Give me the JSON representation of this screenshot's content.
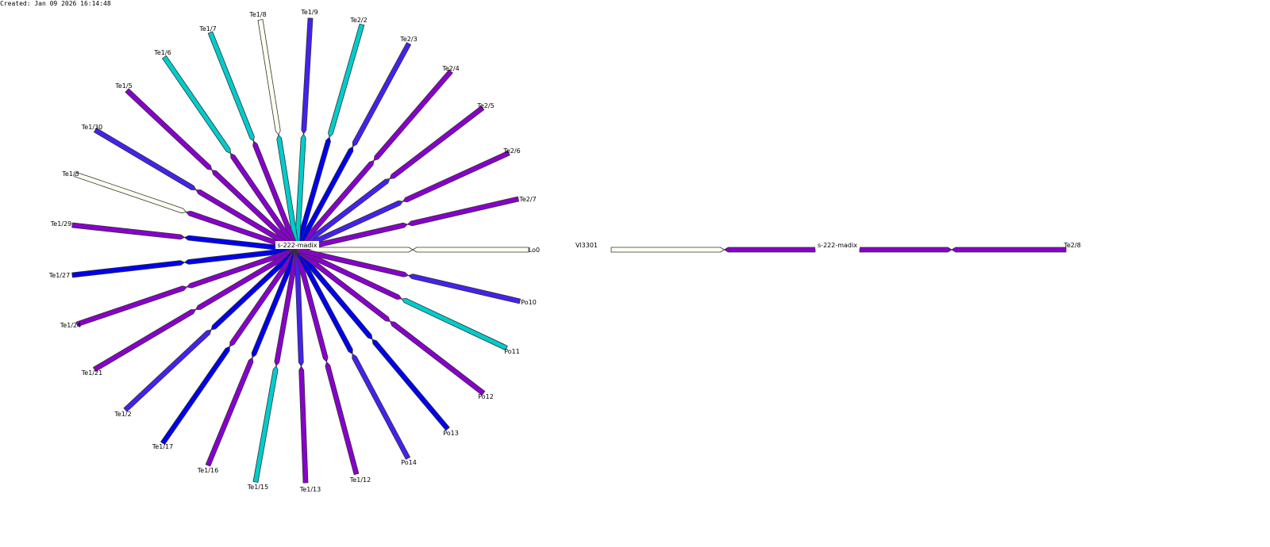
{
  "created": "Created: Jan 09 2026 16:14:48",
  "colors": {
    "purple": "#8800cc",
    "blue": "#0000ee",
    "indigo": "#4422ee",
    "cyan": "#00cccc",
    "ivory": "#fffff0"
  },
  "star": {
    "center": "s-222-madix",
    "links": [
      {
        "port": "Lo0",
        "near": "ivory",
        "far": "ivory"
      },
      {
        "port": "Te2/7",
        "near": "purple",
        "far": "purple"
      },
      {
        "port": "Te2/6",
        "near": "indigo",
        "far": "purple"
      },
      {
        "port": "Te2/5",
        "near": "indigo",
        "far": "purple"
      },
      {
        "port": "Te2/4",
        "near": "purple",
        "far": "purple"
      },
      {
        "port": "Te2/3",
        "near": "blue",
        "far": "indigo"
      },
      {
        "port": "Te2/2",
        "near": "blue",
        "far": "cyan"
      },
      {
        "port": "Te1/9",
        "near": "cyan",
        "far": "indigo"
      },
      {
        "port": "Te1/8",
        "near": "cyan",
        "far": "ivory"
      },
      {
        "port": "Te1/7",
        "near": "purple",
        "far": "cyan"
      },
      {
        "port": "Te1/6",
        "near": "purple",
        "far": "cyan"
      },
      {
        "port": "Te1/5",
        "near": "purple",
        "far": "purple"
      },
      {
        "port": "Te1/30",
        "near": "purple",
        "far": "indigo"
      },
      {
        "port": "Te1/3",
        "near": "purple",
        "far": "ivory"
      },
      {
        "port": "Te1/29",
        "near": "blue",
        "far": "purple"
      },
      {
        "port": "Te1/27",
        "near": "blue",
        "far": "blue"
      },
      {
        "port": "Te1/24",
        "near": "purple",
        "far": "purple"
      },
      {
        "port": "Te1/21",
        "near": "purple",
        "far": "purple"
      },
      {
        "port": "Te1/2",
        "near": "blue",
        "far": "indigo"
      },
      {
        "port": "Te1/17",
        "near": "purple",
        "far": "blue"
      },
      {
        "port": "Te1/16",
        "near": "blue",
        "far": "purple"
      },
      {
        "port": "Te1/15",
        "near": "purple",
        "far": "cyan"
      },
      {
        "port": "Te1/13",
        "near": "indigo",
        "far": "purple"
      },
      {
        "port": "Te1/12",
        "near": "purple",
        "far": "purple"
      },
      {
        "port": "Po14",
        "near": "blue",
        "far": "indigo"
      },
      {
        "port": "Po13",
        "near": "blue",
        "far": "blue"
      },
      {
        "port": "Po12",
        "near": "purple",
        "far": "purple"
      },
      {
        "port": "Po11",
        "near": "purple",
        "far": "cyan"
      },
      {
        "port": "Po10",
        "near": "purple",
        "far": "indigo"
      }
    ]
  },
  "chain": {
    "left_node": "Vl3301",
    "center": "s-222-madix",
    "right_node": "Te2/8",
    "left_link": {
      "near": "purple",
      "far": "ivory"
    },
    "right_link": {
      "near": "purple",
      "far": "purple"
    }
  }
}
